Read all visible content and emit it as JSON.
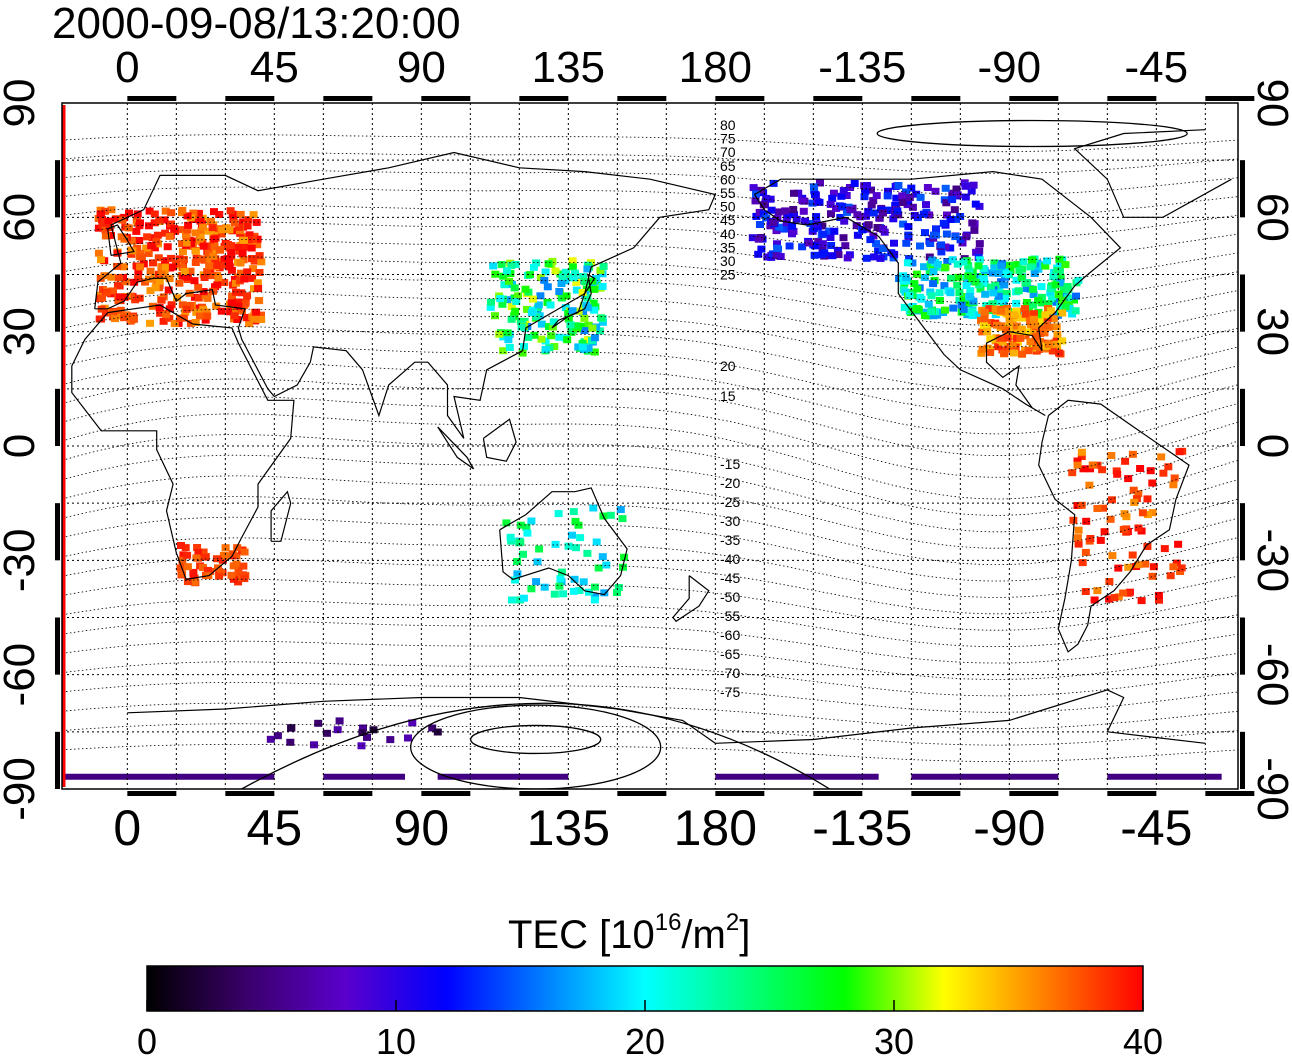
{
  "title": "2000-09-08/13:20:00",
  "map": {
    "top_lon_labels": [
      "0",
      "45",
      "90",
      "135",
      "180",
      "-135",
      "-90",
      "-45"
    ],
    "bottom_lon_labels": [
      "0",
      "45",
      "90",
      "135",
      "180",
      "-135",
      "-90",
      "-45"
    ],
    "left_lat_labels": [
      "90",
      "60",
      "30",
      "0",
      "-30",
      "-60",
      "-90"
    ],
    "right_lat_labels": [
      "90",
      "60",
      "30",
      "0",
      "-30",
      "-60",
      "-90"
    ],
    "contour_labels_north": [
      "80",
      "75",
      "70",
      "65",
      "60",
      "55",
      "50",
      "45",
      "40",
      "35",
      "30",
      "25",
      "20",
      "15"
    ],
    "contour_labels_south": [
      "-15",
      "-20",
      "-25",
      "-30",
      "-35",
      "-40",
      "-45",
      "-50",
      "-55",
      "-60",
      "-65",
      "-70",
      "-75"
    ]
  },
  "colorbar": {
    "title_main": "TEC  [10",
    "title_exp": "16",
    "title_mid": "/m",
    "title_exp2": "2",
    "title_end": "]",
    "tick_labels": [
      "0",
      "10",
      "20",
      "30",
      "40"
    ],
    "min": 0,
    "max": 40,
    "colors": [
      "#000000",
      "#3a006a",
      "#5a00cc",
      "#0000ff",
      "#0080ff",
      "#00ffff",
      "#00ff80",
      "#00ff00",
      "#ffff00",
      "#ff8000",
      "#ff0000"
    ]
  },
  "tec_regions": [
    {
      "name": "europe",
      "value": 38
    },
    {
      "name": "north-america-south",
      "value": 36
    },
    {
      "name": "north-america-central",
      "value": 22
    },
    {
      "name": "canada-alaska",
      "value": 10
    },
    {
      "name": "east-asia",
      "value": 24
    },
    {
      "name": "south-america",
      "value": 38
    },
    {
      "name": "australia",
      "value": 22
    },
    {
      "name": "south-africa",
      "value": 38
    },
    {
      "name": "antarctic-band",
      "value": 5
    }
  ]
}
